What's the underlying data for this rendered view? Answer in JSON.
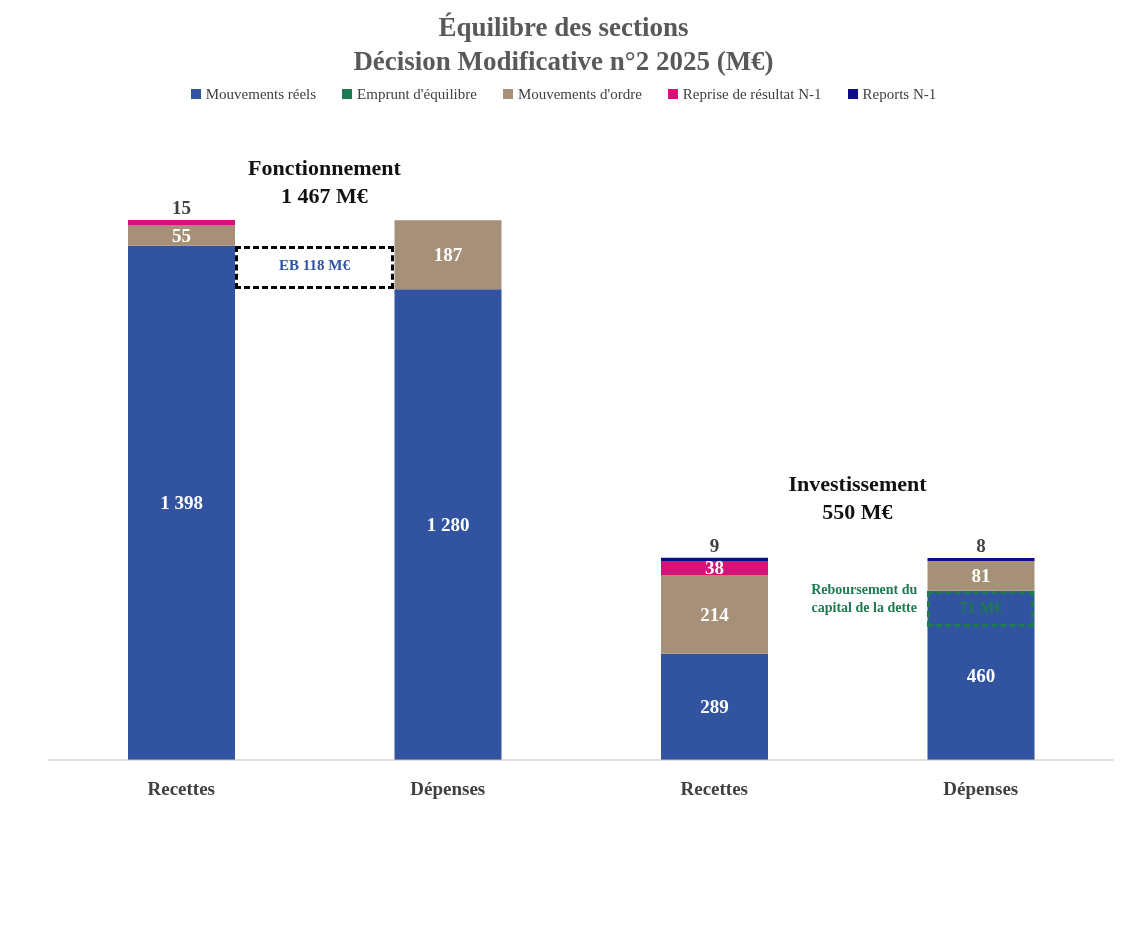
{
  "chart_data": {
    "type": "bar",
    "title": "Équilibre des sections",
    "subtitle": "Décision Modificative n°2 2025 (M€)",
    "categories": [
      "Recettes",
      "Dépenses",
      "Recettes",
      "Dépenses"
    ],
    "stacked": true,
    "legend": "top",
    "series": [
      {
        "name": "Mouvements réels",
        "color": "#3153a0",
        "values": [
          1398,
          1280,
          289,
          460
        ],
        "value_labels": [
          "1 398",
          "1 280",
          "289",
          "460"
        ]
      },
      {
        "name": "Emprunt d'équilibre",
        "color": "#1e7a50",
        "values": [
          null,
          null,
          null,
          null
        ],
        "value_labels": [
          null,
          null,
          null,
          null
        ]
      },
      {
        "name": "Mouvements d'ordre",
        "color": "#a69178",
        "values": [
          55,
          187,
          214,
          81
        ],
        "value_labels": [
          "55",
          "187",
          "214",
          "81"
        ]
      },
      {
        "name": "Reprise de résultat N-1",
        "color": "#d4127a",
        "values": [
          15,
          null,
          38,
          null
        ],
        "value_labels": [
          "15",
          null,
          "38",
          null
        ]
      },
      {
        "name": "Reports N-1",
        "color": "#0c0c8c",
        "values": [
          null,
          null,
          9,
          8
        ],
        "value_labels": [
          null,
          null,
          "9",
          "8"
        ]
      }
    ],
    "annotations": [
      "Fonctionnement\n1 467  M€",
      "Investissement\n550 M€",
      "EB 118 M€",
      "Reboursement du capital de la dette",
      "71 M€"
    ]
  }
}
